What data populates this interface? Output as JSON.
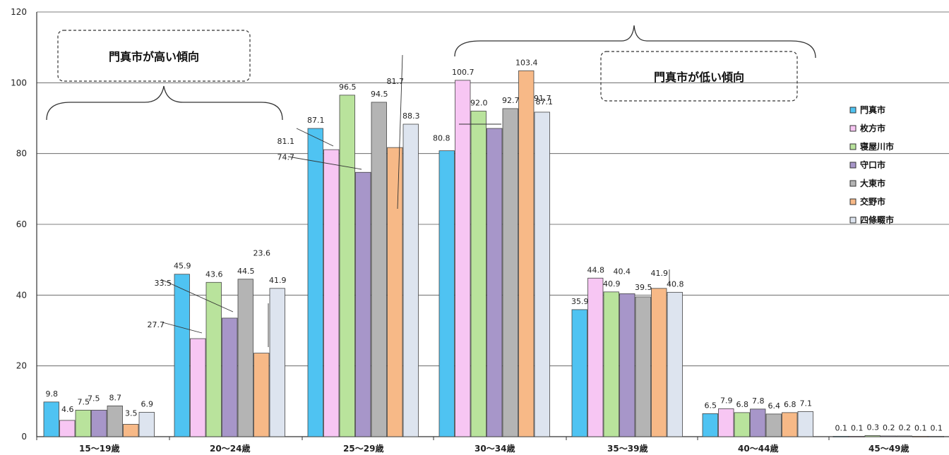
{
  "chart_data": {
    "type": "bar",
    "ylabel": "",
    "ylim": [
      0,
      120
    ],
    "yticks": [
      0,
      20,
      40,
      60,
      80,
      100,
      120
    ],
    "grid": true,
    "legend_position": "right",
    "categories": [
      "15～19歳",
      "20～24歳",
      "25～29歳",
      "30～34歳",
      "35～39歳",
      "40～44歳",
      "45～49歳"
    ],
    "series": [
      {
        "name": "門真市",
        "color": "#4fc3f2",
        "values": [
          9.8,
          45.9,
          87.1,
          80.8,
          35.9,
          6.5,
          0.1
        ]
      },
      {
        "name": "枚方市",
        "color": "#f7c6f3",
        "values": [
          4.6,
          27.7,
          81.1,
          100.7,
          44.8,
          7.9,
          0.1
        ]
      },
      {
        "name": "寝屋川市",
        "color": "#b9e39c",
        "values": [
          7.5,
          43.6,
          96.5,
          92.0,
          40.9,
          6.8,
          0.3
        ]
      },
      {
        "name": "守口市",
        "color": "#a796c9",
        "values": [
          7.5,
          33.5,
          74.7,
          87.1,
          40.4,
          7.8,
          0.2
        ]
      },
      {
        "name": "大東市",
        "color": "#b4b4b4",
        "values": [
          8.7,
          44.5,
          94.5,
          92.7,
          39.5,
          6.4,
          0.2
        ]
      },
      {
        "name": "交野市",
        "color": "#f7b987",
        "values": [
          3.5,
          23.6,
          81.7,
          103.4,
          41.9,
          6.8,
          0.1
        ]
      },
      {
        "name": "四條畷市",
        "color": "#dde4ef",
        "values": [
          6.9,
          41.9,
          88.3,
          91.7,
          40.8,
          7.1,
          0.1
        ]
      }
    ],
    "annotations": [
      "門真市が高い傾向",
      "門真市が低い傾向"
    ]
  }
}
